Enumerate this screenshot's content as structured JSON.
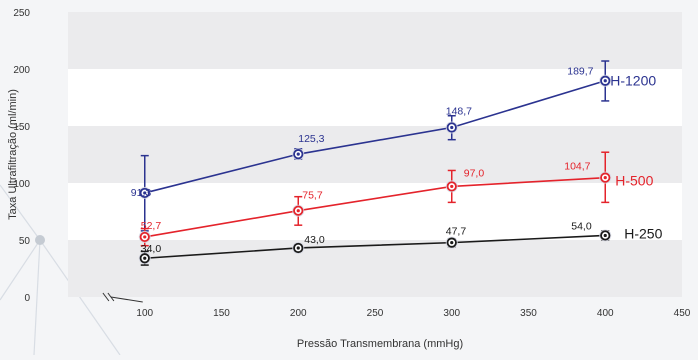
{
  "chart_data": {
    "type": "line",
    "xlabel": "Pressão Transmembrana (mmHg)",
    "ylabel": "Taxa Ultrafiltração (ml/min)",
    "xlim": [
      50,
      450
    ],
    "ylim": [
      0,
      250
    ],
    "x_ticks": [
      "100",
      "150",
      "200",
      "250",
      "300",
      "350",
      "400",
      "450"
    ],
    "y_ticks": [
      "0",
      "50",
      "100",
      "150",
      "200",
      "250"
    ],
    "x": [
      100,
      200,
      300,
      400
    ],
    "grid": "alternating horizontal bands",
    "axis_break": "x-axis between 50 and 100",
    "series": [
      {
        "name": "H-1200",
        "color": "#2b3390",
        "values": [
          91.3,
          125.3,
          148.7,
          189.7
        ],
        "labels": [
          "91,3",
          "125,3",
          "148,7",
          "189,7"
        ],
        "error_low": [
          58,
          121,
          138,
          172
        ],
        "error_high": [
          124,
          130,
          159,
          207
        ]
      },
      {
        "name": "H-500",
        "color": "#e4232b",
        "values": [
          52.7,
          75.7,
          97.0,
          104.7
        ],
        "labels": [
          "52,7",
          "75,7",
          "97,0",
          "104,7"
        ],
        "error_low": [
          45,
          63,
          83,
          83
        ],
        "error_high": [
          60,
          88,
          111,
          127
        ]
      },
      {
        "name": "H-250",
        "color": "#1a1a1a",
        "values": [
          34.0,
          43.0,
          47.7,
          54.0
        ],
        "labels": [
          "34,0",
          "43,0",
          "47,7",
          "54,0"
        ],
        "error_low": [
          28,
          40,
          44,
          50
        ],
        "error_high": [
          40,
          46,
          51,
          58
        ]
      }
    ]
  }
}
